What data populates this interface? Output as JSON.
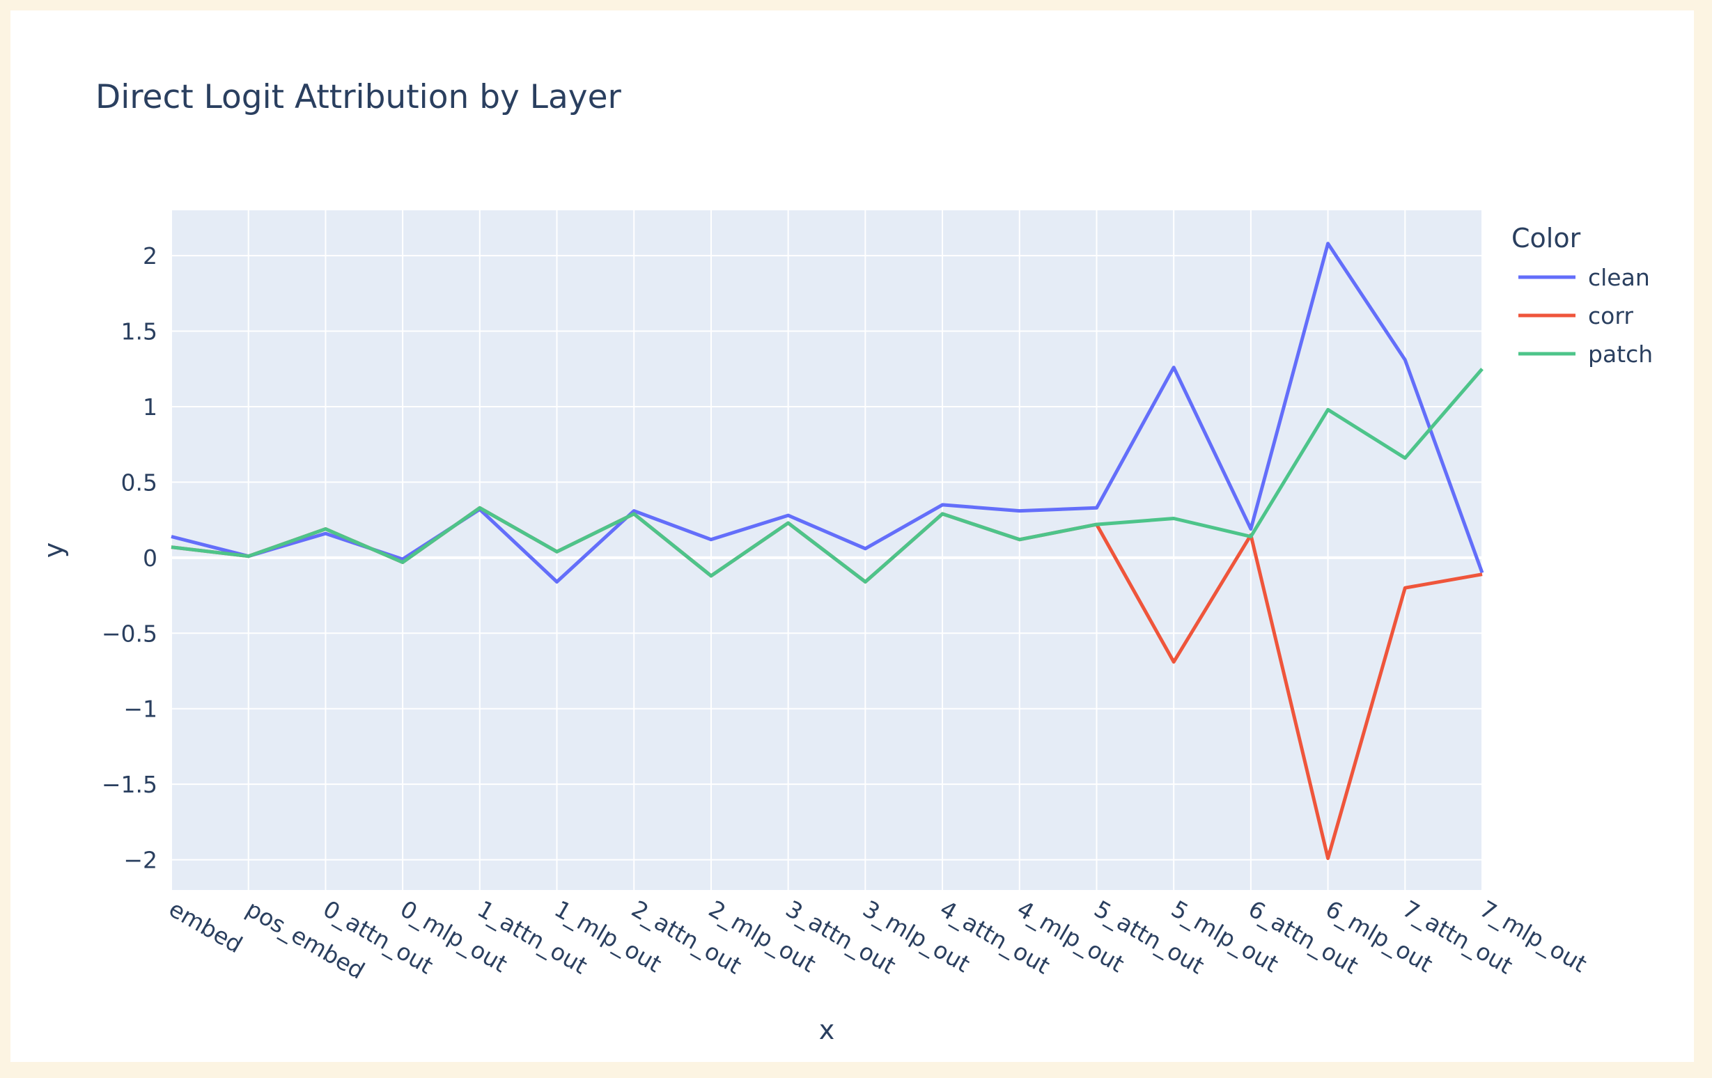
{
  "chart_data": {
    "type": "line",
    "title": "Direct Logit Attribution by Layer",
    "xlabel": "x",
    "ylabel": "y",
    "legend_title": "Color",
    "legend_position": "top-right",
    "grid": true,
    "ylim": [
      -2.2,
      2.3
    ],
    "yticks": [
      -2,
      -1.5,
      -1,
      -0.5,
      0,
      0.5,
      1,
      1.5,
      2
    ],
    "ytick_labels": [
      "−2",
      "−1.5",
      "−1",
      "−0.5",
      "0",
      "0.5",
      "1",
      "1.5",
      "2"
    ],
    "categories": [
      "embed",
      "pos_embed",
      "0_attn_out",
      "0_mlp_out",
      "1_attn_out",
      "1_mlp_out",
      "2_attn_out",
      "2_mlp_out",
      "3_attn_out",
      "3_mlp_out",
      "4_attn_out",
      "4_mlp_out",
      "5_attn_out",
      "5_mlp_out",
      "6_attn_out",
      "6_mlp_out",
      "7_attn_out",
      "7_mlp_out"
    ],
    "series": [
      {
        "name": "clean",
        "color": "#636efa",
        "values": [
          0.14,
          0.01,
          0.16,
          -0.01,
          0.32,
          -0.16,
          0.31,
          0.12,
          0.28,
          0.06,
          0.35,
          0.31,
          0.33,
          1.26,
          0.19,
          2.08,
          1.31,
          -0.1
        ]
      },
      {
        "name": "corr",
        "color": "#ef553b",
        "values": [
          0.07,
          0.01,
          0.19,
          -0.03,
          0.33,
          0.04,
          0.29,
          -0.12,
          0.23,
          -0.16,
          0.29,
          0.12,
          0.22,
          -0.69,
          0.15,
          -1.99,
          -0.2,
          -0.11
        ]
      },
      {
        "name": "patch",
        "color": "#4dc48a",
        "values": [
          0.07,
          0.01,
          0.19,
          -0.03,
          0.33,
          0.04,
          0.29,
          -0.12,
          0.23,
          -0.16,
          0.29,
          0.12,
          0.22,
          0.26,
          0.14,
          0.98,
          0.66,
          1.25
        ]
      }
    ]
  }
}
